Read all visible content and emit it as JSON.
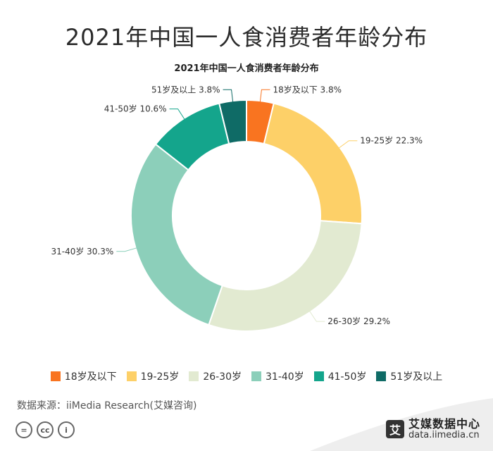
{
  "header": {
    "title": "2021年中国一人食消费者年龄分布"
  },
  "chart_data": {
    "type": "pie",
    "variant": "donut",
    "title": "2021年中国一人食消费者年龄分布",
    "unit": "%",
    "categories": [
      "18岁及以下",
      "19-25岁",
      "26-30岁",
      "31-40岁",
      "41-50岁",
      "51岁及以上"
    ],
    "values": [
      3.8,
      22.3,
      29.2,
      30.3,
      10.6,
      3.8
    ],
    "colors": [
      "#f97420",
      "#fdd068",
      "#e2ead1",
      "#8ccfba",
      "#14a58c",
      "#0f6b66"
    ],
    "data_labels": [
      "18岁及以下 3.8%",
      "19-25岁 22.3%",
      "26-30岁 29.2%",
      "31-40岁 30.3%",
      "41-50岁 10.6%",
      "51岁及以上 3.8%"
    ],
    "legend_position": "bottom"
  },
  "footer": {
    "source": "数据来源：iiMedia Research(艾媒咨询)",
    "license_icons": [
      "=",
      "cc",
      "i"
    ],
    "brand_logo_char": "艾",
    "brand_name": "艾媒数据中心",
    "brand_url": "data.iimedia.cn"
  }
}
